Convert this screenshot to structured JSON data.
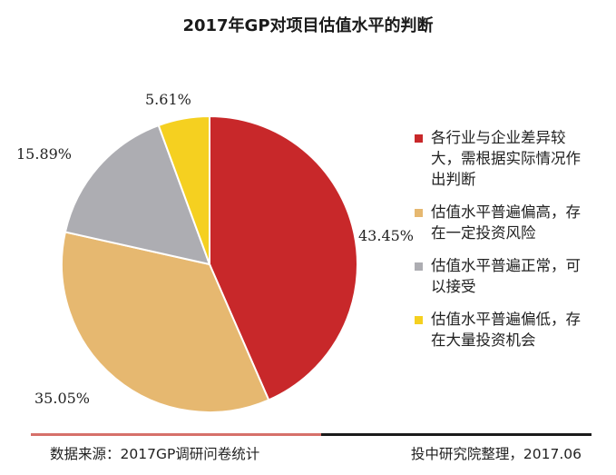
{
  "chart_data": {
    "type": "pie",
    "title": "2017年GP对项目估值水平的判断",
    "slices": [
      {
        "label": "各行业与企业差异较大，需根据实际情况作出判断",
        "legend_lines": [
          "各行业与企业差异较",
          "大，需根据实际情况作",
          "出判断"
        ],
        "value": 43.45,
        "value_label": "43.45%",
        "color": "#c8282a"
      },
      {
        "label": "估值水平普遍偏高，存在一定投资风险",
        "legend_lines": [
          "估值水平普遍偏高，存",
          "在一定投资风险"
        ],
        "value": 35.05,
        "value_label": "35.05%",
        "color": "#e6b870"
      },
      {
        "label": "估值水平普遍正常，可以接受",
        "legend_lines": [
          "估值水平普遍正常，可",
          "以接受"
        ],
        "value": 15.89,
        "value_label": "15.89%",
        "color": "#adadb2"
      },
      {
        "label": "估值水平普遍偏低，存在大量投资机会",
        "legend_lines": [
          "估值水平普遍偏低，存",
          "在大量投资机会"
        ],
        "value": 5.61,
        "value_label": "5.61%",
        "color": "#f5d020"
      }
    ],
    "legend_position": "right"
  },
  "footer": {
    "source": "数据来源：2017GP调研问卷统计",
    "organization": "投中研究院整理，2017.06"
  }
}
